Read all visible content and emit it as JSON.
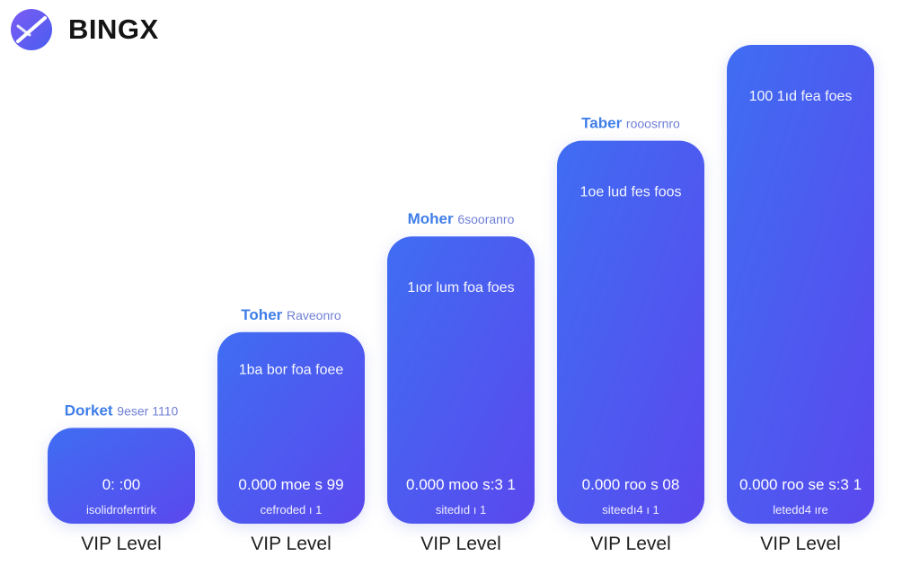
{
  "brand": {
    "name": "BINGX",
    "logo_icon": "bingx-logo-icon",
    "colors": {
      "logo_gradient": [
        "#6a5cf4",
        "#3b6cf0"
      ],
      "text": "#141414"
    }
  },
  "chart_data": {
    "type": "bar",
    "categories": [
      "VIP Level",
      "VIP Level",
      "VIP Level",
      "VIP Level",
      "VIP Level"
    ],
    "values": [
      1,
      2,
      3,
      4,
      5
    ],
    "title": "",
    "xlabel": "",
    "ylabel": "",
    "ylim": [
      0,
      5
    ],
    "grid": false,
    "legend": "none",
    "bar_colors": {
      "top": "#4a63f0",
      "bottom": "#5b48ee",
      "start": "#3f6df2"
    },
    "label_colors": {
      "heading_bold": "#3f7ee8",
      "heading_light": "#6f7fd6",
      "in_bar": "#ffffff",
      "category": "#1f1f1f"
    },
    "bars": [
      {
        "heading_bold": "Dorket",
        "heading_light": "9eser 1110",
        "top_line": "",
        "value_line": "0: :00",
        "sub_line": "isolidroferrtirk"
      },
      {
        "heading_bold": "Toher",
        "heading_light": "Raveonro",
        "top_line": "1ba bor foa foee",
        "value_line": "0.000 moe s 99",
        "sub_line": "cefroded ı 1"
      },
      {
        "heading_bold": "Moher",
        "heading_light": "6sooranro",
        "top_line": "1ıor lum foa foes",
        "value_line": "0.000 moo s:3 1",
        "sub_line": "sitedıd ı 1"
      },
      {
        "heading_bold": "Taber",
        "heading_light": "rooosrnro",
        "top_line": "1oe lud fes foos",
        "value_line": "0.000 roo s 08",
        "sub_line": "siteedı4 ı 1"
      },
      {
        "heading_bold": "",
        "heading_light": "",
        "top_line": "100 1ıd fea foes",
        "value_line": "0.000 roo se s:3 1",
        "sub_line": "letedd4 ıre"
      }
    ]
  }
}
